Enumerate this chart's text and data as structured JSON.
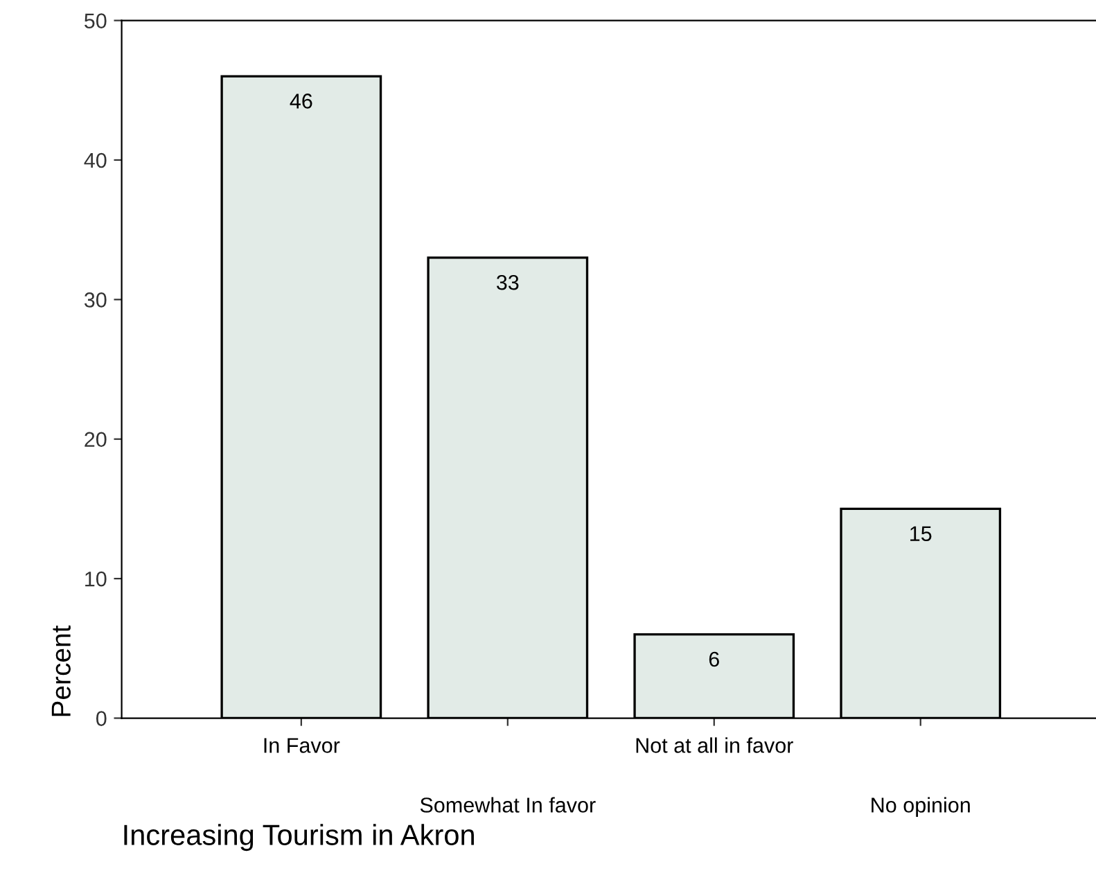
{
  "chart_data": {
    "type": "bar",
    "xlabel": "Increasing Tourism in Akron",
    "ylabel": "Percent",
    "categories": [
      "In Favor",
      "Somewhat In favor",
      "Not at all in favor",
      "No opinion"
    ],
    "values": [
      46,
      33,
      6,
      15
    ],
    "color": "#e2ebe7",
    "ylim": [
      0,
      50
    ],
    "yticks": [
      0,
      10,
      20,
      30,
      40,
      50
    ],
    "data_labels": true,
    "grid": false,
    "legend": false
  }
}
